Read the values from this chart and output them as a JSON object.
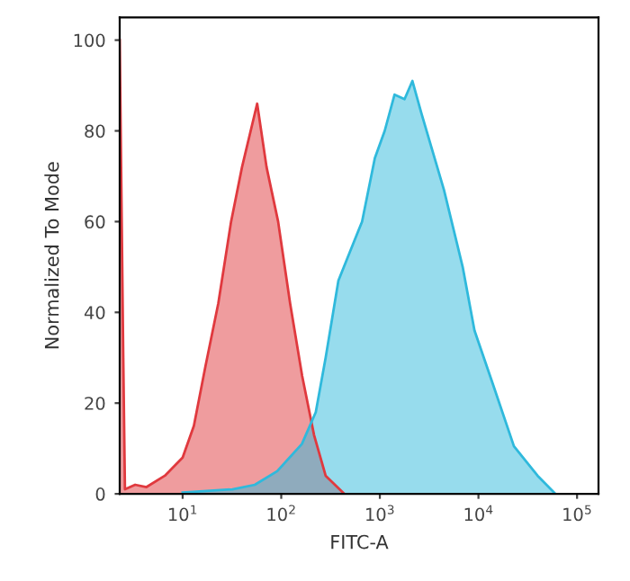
{
  "chart_data": {
    "type": "area",
    "xlabel": "FITC-A",
    "ylabel": "Normalized To Mode",
    "log": "x",
    "xlim": [
      2.3,
      165000
    ],
    "ylim": [
      0,
      105
    ],
    "xticks": [
      {
        "value": 10,
        "label": "10$^{1}$"
      },
      {
        "value": 100,
        "label": "10$^{2}$"
      },
      {
        "value": 1000,
        "label": "10$^{3}$"
      },
      {
        "value": 10000,
        "label": "10$^{4}$"
      },
      {
        "value": 100000,
        "label": "10$^{5}$"
      }
    ],
    "yticks": [
      0,
      20,
      40,
      60,
      80,
      100
    ],
    "grid": false,
    "legend": false,
    "series": [
      {
        "color": "#e0393e",
        "x": [
          2.3,
          2.5,
          2.6,
          3.3,
          4.3,
          6.6,
          10,
          13,
          17,
          23,
          31,
          40,
          57,
          71,
          93,
          123,
          163,
          215,
          282,
          436
        ],
        "values": [
          100,
          30,
          1,
          2,
          1.5,
          4,
          8,
          15,
          28,
          42,
          60,
          72,
          86,
          72,
          60,
          42,
          26,
          13,
          4,
          0
        ]
      },
      {
        "color": "#2fb9dc",
        "x": [
          10,
          32,
          54,
          91,
          162,
          224,
          282,
          380,
          490,
          660,
          890,
          1120,
          1410,
          1780,
          2140,
          2630,
          4470,
          6920,
          9120,
          14100,
          22900,
          39800,
          60300
        ],
        "values": [
          0.3,
          1,
          2,
          5,
          11,
          18,
          30,
          47,
          53,
          60,
          74,
          80,
          88,
          87,
          91,
          84,
          67,
          50,
          36,
          24,
          10.5,
          4,
          0
        ]
      }
    ]
  }
}
